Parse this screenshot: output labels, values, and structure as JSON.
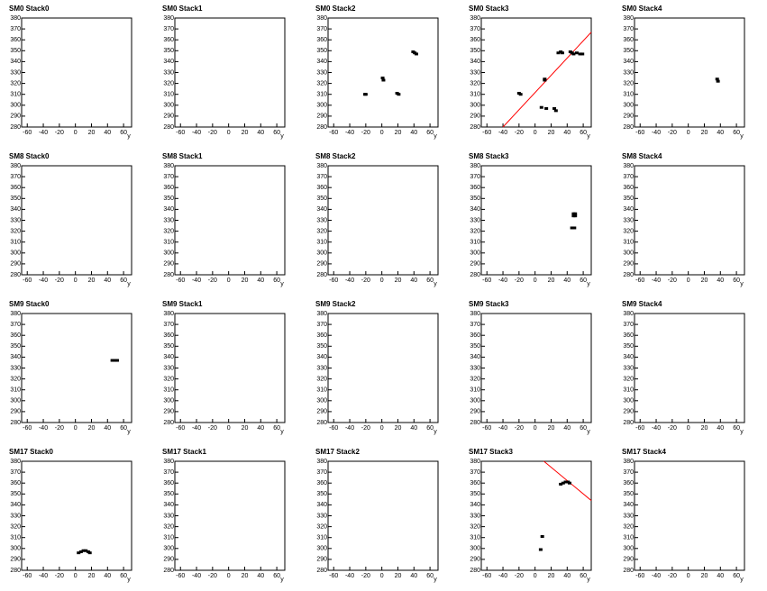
{
  "chart_data": [
    {
      "type": "scatter",
      "title": "SM0 Stack0",
      "xlabel": "y",
      "xlim": [
        -67,
        70
      ],
      "ylim": [
        280,
        380
      ],
      "xticks": [
        -60,
        -40,
        -20,
        0,
        20,
        40,
        60
      ],
      "yticks": [
        280,
        290,
        300,
        310,
        320,
        330,
        340,
        350,
        360,
        370,
        380
      ],
      "color": "#000000",
      "x": [],
      "values": []
    },
    {
      "type": "scatter",
      "title": "SM0 Stack1",
      "xlabel": "y",
      "xlim": [
        -67,
        70
      ],
      "ylim": [
        280,
        380
      ],
      "xticks": [
        -60,
        -40,
        -20,
        0,
        20,
        40,
        60
      ],
      "yticks": [
        280,
        290,
        300,
        310,
        320,
        330,
        340,
        350,
        360,
        370,
        380
      ],
      "color": "#000000",
      "x": [],
      "values": []
    },
    {
      "type": "scatter",
      "title": "SM0 Stack2",
      "xlabel": "y",
      "xlim": [
        -67,
        70
      ],
      "ylim": [
        280,
        380
      ],
      "xticks": [
        -60,
        -40,
        -20,
        0,
        20,
        40,
        60
      ],
      "yticks": [
        280,
        290,
        300,
        310,
        320,
        330,
        340,
        350,
        360,
        370,
        380
      ],
      "color": "#000000",
      "x": [
        -21,
        -20,
        1,
        2,
        19,
        21,
        39,
        41,
        43
      ],
      "values": [
        310,
        310,
        325,
        323,
        311,
        310,
        349,
        348,
        347
      ]
    },
    {
      "type": "scatter",
      "title": "SM0 Stack3",
      "xlabel": "y",
      "xlim": [
        -67,
        70
      ],
      "ylim": [
        280,
        380
      ],
      "xticks": [
        -60,
        -40,
        -20,
        0,
        20,
        40,
        60
      ],
      "yticks": [
        280,
        290,
        300,
        310,
        320,
        330,
        340,
        350,
        360,
        370,
        380
      ],
      "color": "#000000",
      "x": [
        -20,
        -18,
        12,
        12,
        8,
        14,
        24,
        26,
        29,
        32,
        34,
        44,
        46,
        48,
        52,
        56,
        59
      ],
      "values": [
        311,
        310,
        323,
        324,
        298,
        297,
        297,
        295,
        348,
        349,
        348,
        349,
        348,
        347,
        348,
        347,
        347
      ],
      "fit": {
        "x": [
          -40,
          70
        ],
        "y": [
          280,
          367
        ],
        "color": "#ff0000"
      }
    },
    {
      "type": "scatter",
      "title": "SM0 Stack4",
      "xlabel": "y",
      "xlim": [
        -67,
        70
      ],
      "ylim": [
        280,
        380
      ],
      "xticks": [
        -60,
        -40,
        -20,
        0,
        20,
        40,
        60
      ],
      "yticks": [
        280,
        290,
        300,
        310,
        320,
        330,
        340,
        350,
        360,
        370,
        380
      ],
      "color": "#000000",
      "x": [
        36,
        37
      ],
      "values": [
        324,
        322
      ]
    },
    {
      "type": "scatter",
      "title": "SM8 Stack0",
      "xlabel": "y",
      "xlim": [
        -67,
        70
      ],
      "ylim": [
        280,
        380
      ],
      "xticks": [
        -60,
        -40,
        -20,
        0,
        20,
        40,
        60
      ],
      "yticks": [
        280,
        290,
        300,
        310,
        320,
        330,
        340,
        350,
        360,
        370,
        380
      ],
      "color": "#000000",
      "x": [],
      "values": []
    },
    {
      "type": "scatter",
      "title": "SM8 Stack1",
      "xlabel": "y",
      "xlim": [
        -67,
        70
      ],
      "ylim": [
        280,
        380
      ],
      "xticks": [
        -60,
        -40,
        -20,
        0,
        20,
        40,
        60
      ],
      "yticks": [
        280,
        290,
        300,
        310,
        320,
        330,
        340,
        350,
        360,
        370,
        380
      ],
      "color": "#000000",
      "x": [],
      "values": []
    },
    {
      "type": "scatter",
      "title": "SM8 Stack2",
      "xlabel": "y",
      "xlim": [
        -67,
        70
      ],
      "ylim": [
        280,
        380
      ],
      "xticks": [
        -60,
        -40,
        -20,
        0,
        20,
        40,
        60
      ],
      "yticks": [
        280,
        290,
        300,
        310,
        320,
        330,
        340,
        350,
        360,
        370,
        380
      ],
      "color": "#000000",
      "x": [],
      "values": []
    },
    {
      "type": "scatter",
      "title": "SM8 Stack3",
      "xlabel": "y",
      "xlim": [
        -67,
        70
      ],
      "ylim": [
        280,
        380
      ],
      "xticks": [
        -60,
        -40,
        -20,
        0,
        20,
        40,
        60
      ],
      "yticks": [
        280,
        290,
        300,
        310,
        320,
        330,
        340,
        350,
        360,
        370,
        380
      ],
      "color": "#000000",
      "x": [
        48,
        50,
        48,
        50,
        46,
        49
      ],
      "values": [
        336,
        336,
        334,
        334,
        323,
        323
      ]
    },
    {
      "type": "scatter",
      "title": "SM8 Stack4",
      "xlabel": "y",
      "xlim": [
        -67,
        70
      ],
      "ylim": [
        280,
        380
      ],
      "xticks": [
        -60,
        -40,
        -20,
        0,
        20,
        40,
        60
      ],
      "yticks": [
        280,
        290,
        300,
        310,
        320,
        330,
        340,
        350,
        360,
        370,
        380
      ],
      "color": "#000000",
      "x": [],
      "values": []
    },
    {
      "type": "scatter",
      "title": "SM9 Stack0",
      "xlabel": "y",
      "xlim": [
        -67,
        70
      ],
      "ylim": [
        280,
        380
      ],
      "xticks": [
        -60,
        -40,
        -20,
        0,
        20,
        40,
        60
      ],
      "yticks": [
        280,
        290,
        300,
        310,
        320,
        330,
        340,
        350,
        360,
        370,
        380
      ],
      "color": "#000000",
      "x": [
        46,
        49,
        52
      ],
      "values": [
        337,
        337,
        337
      ]
    },
    {
      "type": "scatter",
      "title": "SM9 Stack1",
      "xlabel": "y",
      "xlim": [
        -67,
        70
      ],
      "ylim": [
        280,
        380
      ],
      "xticks": [
        -60,
        -40,
        -20,
        0,
        20,
        40,
        60
      ],
      "yticks": [
        280,
        290,
        300,
        310,
        320,
        330,
        340,
        350,
        360,
        370,
        380
      ],
      "color": "#000000",
      "x": [],
      "values": []
    },
    {
      "type": "scatter",
      "title": "SM9 Stack2",
      "xlabel": "y",
      "xlim": [
        -67,
        70
      ],
      "ylim": [
        280,
        380
      ],
      "xticks": [
        -60,
        -40,
        -20,
        0,
        20,
        40,
        60
      ],
      "yticks": [
        280,
        290,
        300,
        310,
        320,
        330,
        340,
        350,
        360,
        370,
        380
      ],
      "color": "#000000",
      "x": [],
      "values": []
    },
    {
      "type": "scatter",
      "title": "SM9 Stack3",
      "xlabel": "y",
      "xlim": [
        -67,
        70
      ],
      "ylim": [
        280,
        380
      ],
      "xticks": [
        -60,
        -40,
        -20,
        0,
        20,
        40,
        60
      ],
      "yticks": [
        280,
        290,
        300,
        310,
        320,
        330,
        340,
        350,
        360,
        370,
        380
      ],
      "color": "#000000",
      "x": [],
      "values": []
    },
    {
      "type": "scatter",
      "title": "SM9 Stack4",
      "xlabel": "y",
      "xlim": [
        -67,
        70
      ],
      "ylim": [
        280,
        380
      ],
      "xticks": [
        -60,
        -40,
        -20,
        0,
        20,
        40,
        60
      ],
      "yticks": [
        280,
        290,
        300,
        310,
        320,
        330,
        340,
        350,
        360,
        370,
        380
      ],
      "color": "#000000",
      "x": [],
      "values": []
    },
    {
      "type": "scatter",
      "title": "SM17 Stack0",
      "xlabel": "y",
      "xlim": [
        -67,
        70
      ],
      "ylim": [
        280,
        380
      ],
      "xticks": [
        -60,
        -40,
        -20,
        0,
        20,
        40,
        60
      ],
      "yticks": [
        280,
        290,
        300,
        310,
        320,
        330,
        340,
        350,
        360,
        370,
        380
      ],
      "color": "#000000",
      "x": [
        4,
        7,
        10,
        13,
        16,
        18
      ],
      "values": [
        296,
        297,
        298,
        298,
        297,
        296
      ]
    },
    {
      "type": "scatter",
      "title": "SM17 Stack1",
      "xlabel": "y",
      "xlim": [
        -67,
        70
      ],
      "ylim": [
        280,
        380
      ],
      "xticks": [
        -60,
        -40,
        -20,
        0,
        20,
        40,
        60
      ],
      "yticks": [
        280,
        290,
        300,
        310,
        320,
        330,
        340,
        350,
        360,
        370,
        380
      ],
      "color": "#000000",
      "x": [],
      "values": []
    },
    {
      "type": "scatter",
      "title": "SM17 Stack2",
      "xlabel": "y",
      "xlim": [
        -67,
        70
      ],
      "ylim": [
        280,
        380
      ],
      "xticks": [
        -60,
        -40,
        -20,
        0,
        20,
        40,
        60
      ],
      "yticks": [
        280,
        290,
        300,
        310,
        320,
        330,
        340,
        350,
        360,
        370,
        380
      ],
      "color": "#000000",
      "x": [],
      "values": []
    },
    {
      "type": "scatter",
      "title": "SM17 Stack3",
      "xlabel": "y",
      "xlim": [
        -67,
        70
      ],
      "ylim": [
        280,
        380
      ],
      "xticks": [
        -60,
        -40,
        -20,
        0,
        20,
        40,
        60
      ],
      "yticks": [
        280,
        290,
        300,
        310,
        320,
        330,
        340,
        350,
        360,
        370,
        380
      ],
      "color": "#000000",
      "x": [
        7,
        9,
        32,
        35,
        38,
        41,
        43
      ],
      "values": [
        299,
        311,
        359,
        360,
        361,
        361,
        360
      ],
      "fit": {
        "x": [
          11,
          70
        ],
        "y": [
          380,
          344
        ],
        "color": "#ff0000"
      }
    },
    {
      "type": "scatter",
      "title": "SM17 Stack4",
      "xlabel": "y",
      "xlim": [
        -67,
        70
      ],
      "ylim": [
        280,
        380
      ],
      "xticks": [
        -60,
        -40,
        -20,
        0,
        20,
        40,
        60
      ],
      "yticks": [
        280,
        290,
        300,
        310,
        320,
        330,
        340,
        350,
        360,
        370,
        380
      ],
      "color": "#000000",
      "x": [],
      "values": []
    }
  ]
}
